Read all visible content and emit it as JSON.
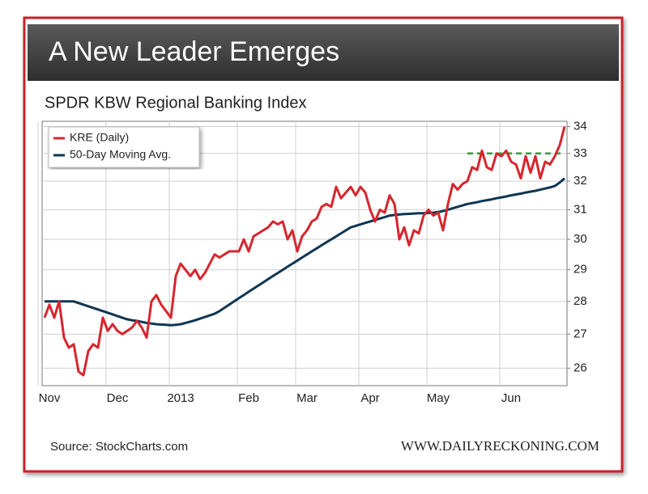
{
  "header": {
    "title": "A New Leader Emerges"
  },
  "chart_data": {
    "type": "line",
    "title": "SPDR KBW Regional Banking Index",
    "categories": [
      null,
      "Nov",
      null,
      null,
      null,
      null,
      null,
      null,
      null,
      null,
      null,
      null,
      null,
      null,
      null,
      "Dec",
      null,
      null,
      null,
      null,
      null,
      null,
      null,
      null,
      null,
      null,
      null,
      null,
      "2013",
      null,
      null,
      null,
      null,
      null,
      null,
      null,
      null,
      null,
      null,
      null,
      null,
      null,
      "Feb",
      null,
      null,
      null,
      null,
      null,
      null,
      null,
      null,
      null,
      null,
      null,
      "Mar",
      null,
      null,
      null,
      null,
      null,
      null,
      null,
      null,
      null,
      null,
      null,
      null,
      "Apr",
      null,
      null,
      null,
      null,
      null,
      null,
      null,
      null,
      null,
      null,
      null,
      null,
      null,
      "May",
      null,
      null,
      null,
      null,
      null,
      null,
      null,
      null,
      null,
      null,
      null,
      null,
      null,
      null,
      "Jun",
      null,
      null,
      null,
      null,
      null,
      null,
      null,
      null,
      null,
      null,
      null
    ],
    "series": [
      {
        "name": "KRE (Daily)",
        "color": "#d7262e",
        "values": [
          27.5,
          27.9,
          27.5,
          28.0,
          26.9,
          26.6,
          26.7,
          25.9,
          25.8,
          26.5,
          26.7,
          26.6,
          27.5,
          27.1,
          27.3,
          27.1,
          27.0,
          27.1,
          27.2,
          27.4,
          27.2,
          26.9,
          28.0,
          28.2,
          27.9,
          27.7,
          27.5,
          28.8,
          29.2,
          29.0,
          28.8,
          29.0,
          28.7,
          28.9,
          29.2,
          29.5,
          29.4,
          29.5,
          29.6,
          29.6,
          29.6,
          30.0,
          29.6,
          30.1,
          30.2,
          30.3,
          30.4,
          30.6,
          30.5,
          30.6,
          30.0,
          30.3,
          29.6,
          30.1,
          30.3,
          30.6,
          30.7,
          31.1,
          31.2,
          31.1,
          31.8,
          31.4,
          31.6,
          31.8,
          31.5,
          31.8,
          31.6,
          31.0,
          30.6,
          31.0,
          30.9,
          31.5,
          31.2,
          30.0,
          30.4,
          29.8,
          30.3,
          30.2,
          30.8,
          31.0,
          30.8,
          30.9,
          30.3,
          31.2,
          31.9,
          31.7,
          31.9,
          32.0,
          32.5,
          32.4,
          33.1,
          32.5,
          32.4,
          33.0,
          32.9,
          33.1,
          32.7,
          32.6,
          32.1,
          32.9,
          32.3,
          32.9,
          32.1,
          32.7,
          32.6,
          32.9,
          33.3,
          34.0
        ]
      },
      {
        "name": "50-Day Moving Avg.",
        "color": "#0f3553",
        "values": [
          28.0,
          28.0,
          28.0,
          28.0,
          28.0,
          28.0,
          28.0,
          27.95,
          27.9,
          27.85,
          27.8,
          27.75,
          27.7,
          27.65,
          27.6,
          27.55,
          27.5,
          27.45,
          27.42,
          27.4,
          27.37,
          27.34,
          27.32,
          27.3,
          27.29,
          27.28,
          27.27,
          27.28,
          27.3,
          27.34,
          27.38,
          27.42,
          27.47,
          27.52,
          27.57,
          27.62,
          27.7,
          27.8,
          27.9,
          28.0,
          28.1,
          28.2,
          28.3,
          28.4,
          28.5,
          28.6,
          28.7,
          28.8,
          28.9,
          29.0,
          29.1,
          29.2,
          29.3,
          29.4,
          29.5,
          29.6,
          29.7,
          29.8,
          29.9,
          30.0,
          30.1,
          30.2,
          30.3,
          30.4,
          30.45,
          30.5,
          30.55,
          30.6,
          30.65,
          30.7,
          30.75,
          30.8,
          30.82,
          30.84,
          30.85,
          30.86,
          30.87,
          30.88,
          30.88,
          30.89,
          30.9,
          30.92,
          30.96,
          31.0,
          31.05,
          31.1,
          31.15,
          31.2,
          31.23,
          31.26,
          31.3,
          31.33,
          31.36,
          31.4,
          31.43,
          31.46,
          31.5,
          31.53,
          31.56,
          31.6,
          31.63,
          31.66,
          31.7,
          31.74,
          31.78,
          31.83,
          31.95,
          32.1
        ]
      }
    ],
    "ylim": [
      25.5,
      34.2
    ],
    "yticks": [
      26,
      27,
      28,
      29,
      30,
      31,
      32,
      33,
      34
    ],
    "log_scale": true,
    "grid": true,
    "legend": "upper left",
    "reference_line": {
      "value": 33,
      "color": "#2e9e3e",
      "from_index": 87
    }
  },
  "footer": {
    "source": "Source: StockCharts.com",
    "website": "WWW.DAILYRECKONING.COM"
  }
}
